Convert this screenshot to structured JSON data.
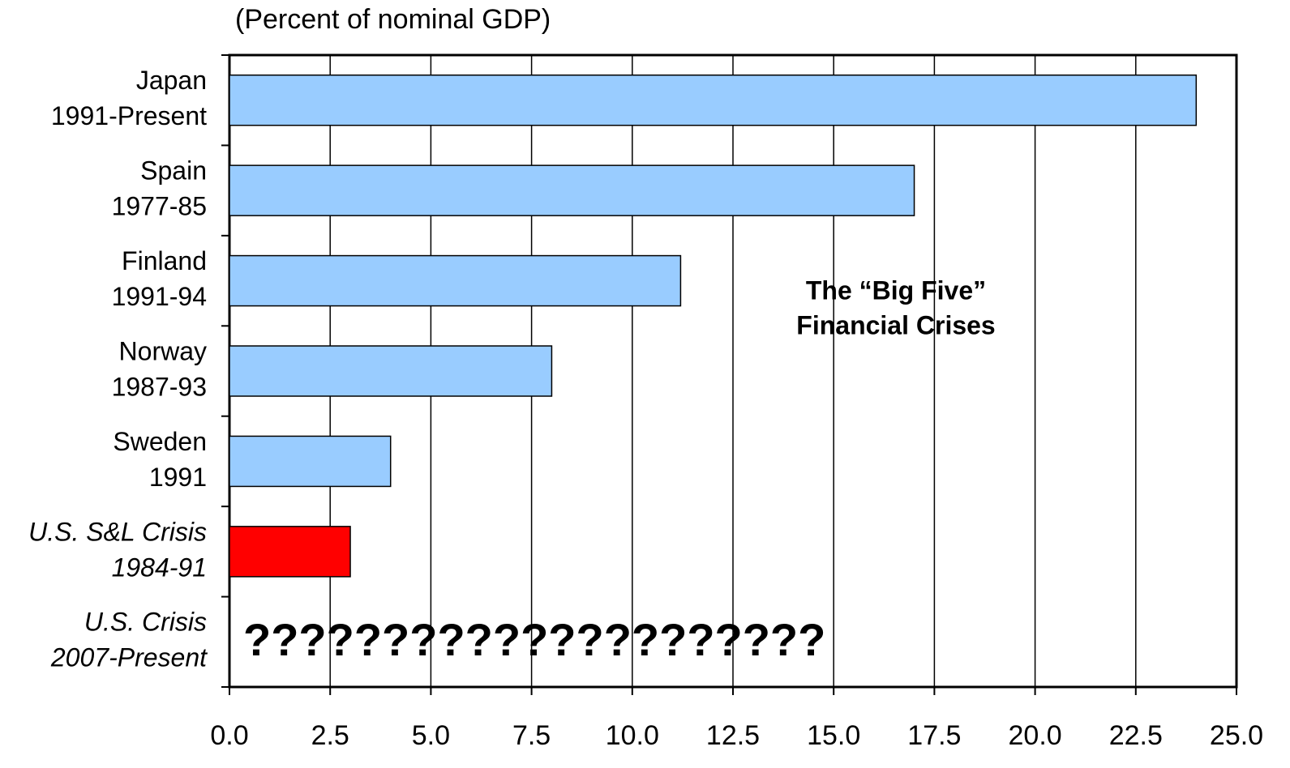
{
  "chart_data": {
    "type": "barh",
    "subtitle": "(Percent of nominal GDP)",
    "categories": [
      [
        "Japan",
        "1991-Present"
      ],
      [
        "Spain",
        "1977-85"
      ],
      [
        "Finland",
        "1991-94"
      ],
      [
        "Norway",
        "1987-93"
      ],
      [
        "Sweden",
        "1991"
      ],
      [
        "U.S. S&L Crisis",
        "1984-91"
      ],
      [
        "U.S. Crisis",
        "2007-Present"
      ]
    ],
    "label_styles": [
      "normal",
      "normal",
      "normal",
      "normal",
      "normal",
      "italic",
      "italic"
    ],
    "values": [
      24.0,
      17.0,
      11.2,
      8.0,
      4.0,
      3.0,
      null
    ],
    "colors": [
      "#99ccff",
      "#99ccff",
      "#99ccff",
      "#99ccff",
      "#99ccff",
      "#ff0000",
      "#99ccff"
    ],
    "xlim": [
      0,
      25
    ],
    "xticks": [
      {
        "value": 0,
        "label": "0.0"
      },
      2.5,
      {
        "value": 5,
        "label": "5.0"
      },
      7.5,
      {
        "value": 10,
        "label": "10.0"
      },
      12.5,
      {
        "value": 15,
        "label": "15.0"
      },
      17.5,
      {
        "value": 20,
        "label": "20.0"
      },
      22.5,
      {
        "value": 25,
        "label": "25.0"
      }
    ],
    "grid": true,
    "annotations": [
      [
        "The “Big Five”",
        "Financial Crises"
      ],
      "?????????????????????"
    ]
  }
}
